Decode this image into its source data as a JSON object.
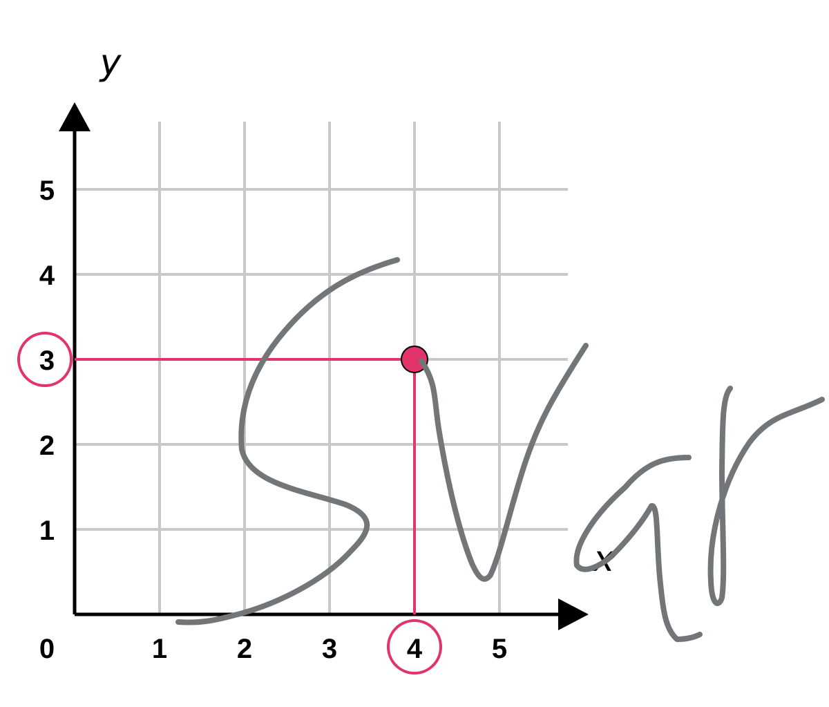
{
  "chart_data": {
    "type": "scatter",
    "title": "",
    "xlabel": "x",
    "ylabel": "y",
    "xlim": [
      0,
      5.5
    ],
    "ylim": [
      0,
      5.5
    ],
    "grid": true,
    "x_ticks": [
      "1",
      "2",
      "3",
      "4",
      "5"
    ],
    "y_ticks": [
      "1",
      "2",
      "3",
      "4",
      "5"
    ],
    "origin_label": "0",
    "points": [
      {
        "x": 4,
        "y": 3
      }
    ],
    "highlight": {
      "x_label": "4",
      "y_label": "3"
    },
    "colors": {
      "highlight": "#e2336b",
      "grid": "#c8c8c8",
      "axis": "#000000",
      "scribble": "#737679"
    }
  }
}
